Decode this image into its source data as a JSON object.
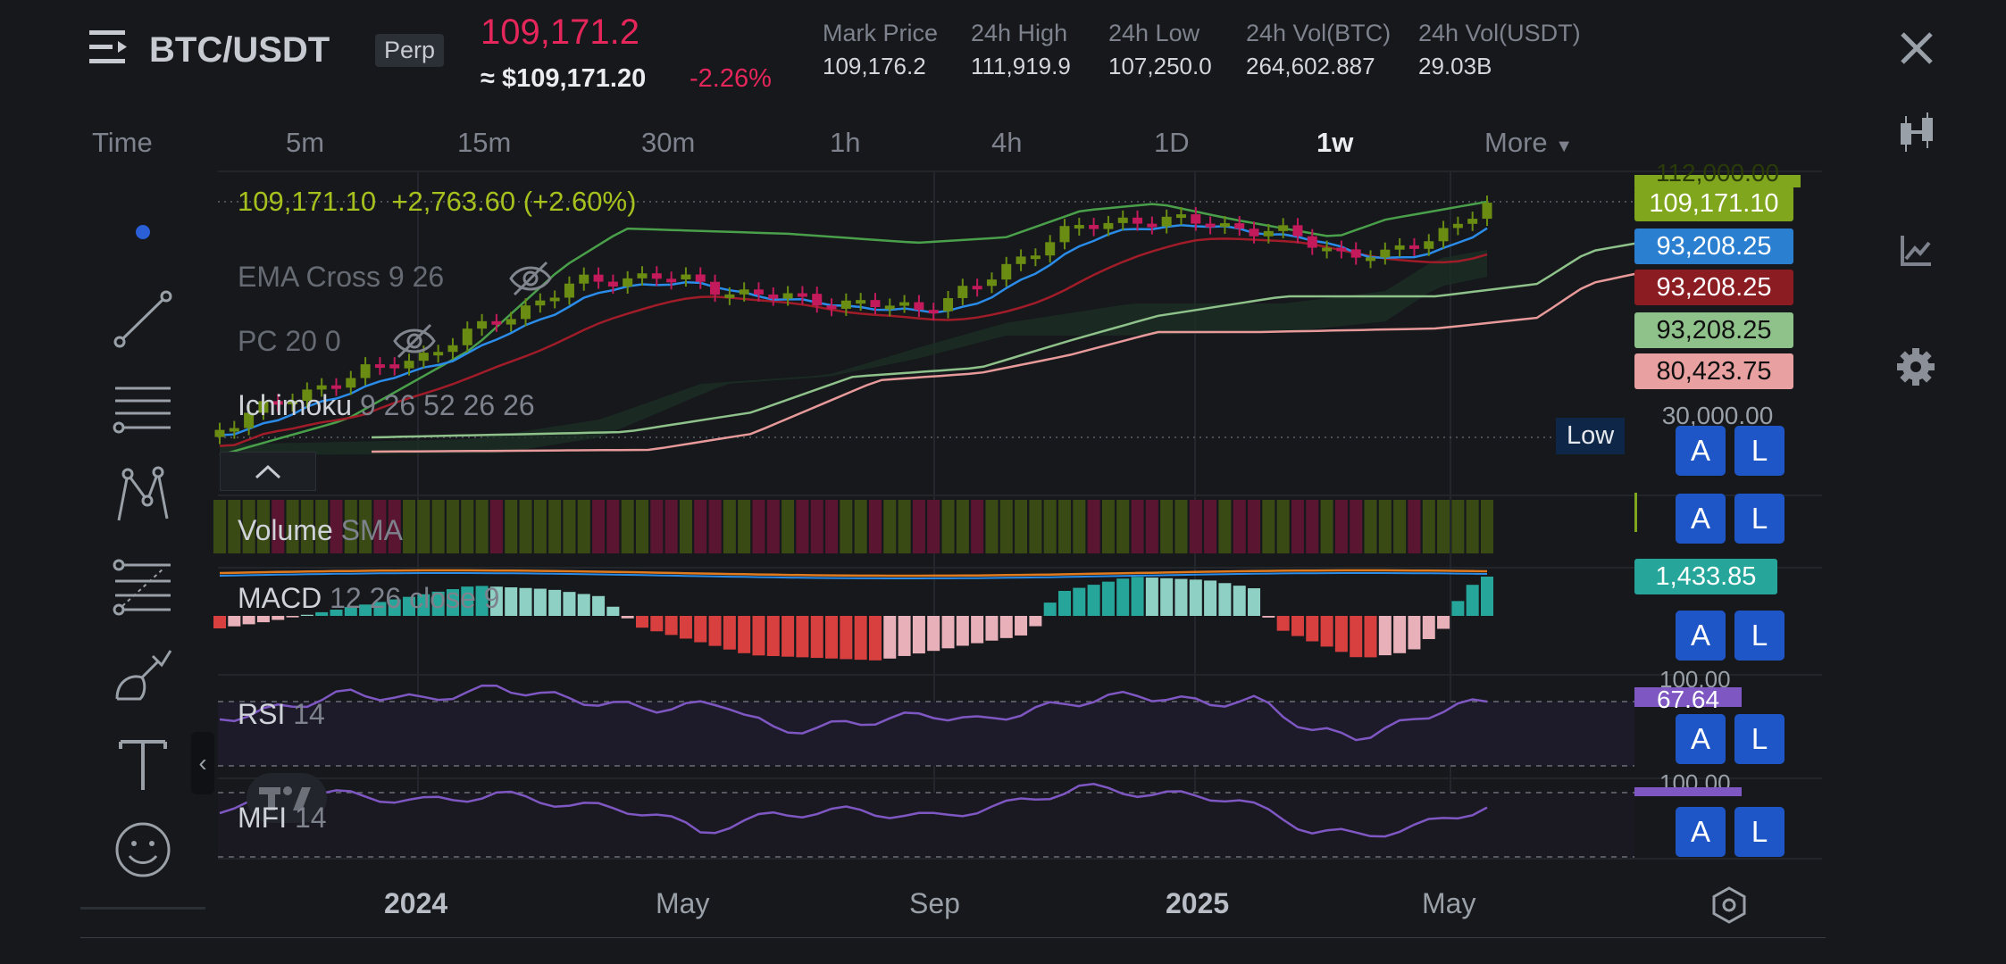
{
  "header": {
    "pair": "BTC/USDT",
    "perp_badge": "Perp",
    "last_price": "109,171.2",
    "approx_price": "≈ $109,171.20",
    "change_pct": "-2.26%",
    "stats": [
      {
        "label": "Mark Price",
        "value": "109,176.2"
      },
      {
        "label": "24h High",
        "value": "111,919.9"
      },
      {
        "label": "24h Low",
        "value": "107,250.0"
      },
      {
        "label": "24h Vol(BTC)",
        "value": "264,602.887"
      },
      {
        "label": "24h Vol(USDT)",
        "value": "29.03B"
      }
    ]
  },
  "timeframes": {
    "time": "Time",
    "items": [
      "5m",
      "15m",
      "30m",
      "1h",
      "4h",
      "1D",
      "1w"
    ],
    "active": "1w",
    "more": "More"
  },
  "chart": {
    "ohlc_line": "109,171.10  +2,763.60 (+2.60%)",
    "indicators": {
      "ema": {
        "name": "EMA Cross",
        "params": "9 26"
      },
      "pc": {
        "name": "PC",
        "params": "20 0"
      },
      "ichimoku": {
        "name": "Ichimoku",
        "params": "9 26 52 26 26"
      },
      "volume": {
        "name": "Volume",
        "params": "SMA"
      },
      "macd": {
        "name": "MACD",
        "params": "12 26 close 9"
      },
      "rsi": {
        "name": "RSI",
        "params": "14"
      },
      "mfi": {
        "name": "MFI",
        "params": "14"
      }
    },
    "low_tag": "Low",
    "price_labels": [
      {
        "value": "109,171.10",
        "bg": "#7fa61c",
        "color": "#ffffff"
      },
      {
        "value": "93,208.25",
        "bg": "#2a7fd0",
        "color": "#ffffff"
      },
      {
        "value": "93,208.25",
        "bg": "#8b1c22",
        "color": "#ffffff"
      },
      {
        "value": "93,208.25",
        "bg": "#8fc28a",
        "color": "#101010"
      },
      {
        "value": "80,423.75",
        "bg": "#e8a0a0",
        "color": "#101010"
      }
    ],
    "scale_partial_top": "112,000.00",
    "scale_partial_30": "30,000.00",
    "macd_label": "1,433.85",
    "rsi_scale_partial": "100.00",
    "rsi_label": "67.64",
    "mfi_scale_partial": "100.00",
    "alert_btn": "A",
    "log_btn": "L",
    "x_labels": [
      {
        "text": "2024",
        "bold": true
      },
      {
        "text": "May",
        "bold": false
      },
      {
        "text": "Sep",
        "bold": false
      },
      {
        "text": "2025",
        "bold": true
      },
      {
        "text": "May",
        "bold": false
      }
    ],
    "collapse_glyph": "‹",
    "colors": {
      "up": "#6a8c12",
      "down": "#c21a5a",
      "ema_fast": "#2a8ce8",
      "ema_slow": "#a01c28",
      "pc_upper": "#4aa04a",
      "pc_lower": "#e89a9a",
      "macd_pos": "#26a69a",
      "macd_pos_light": "#8ed0c4",
      "macd_neg": "#d84040",
      "macd_neg_light": "#e8b0b8",
      "rsi": "#7e57c2"
    }
  }
}
